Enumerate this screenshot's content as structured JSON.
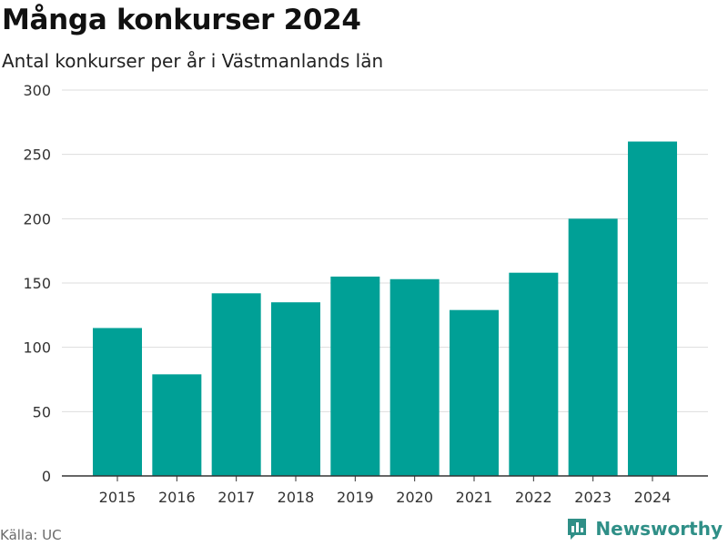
{
  "header": {
    "title": "Många konkurser 2024",
    "subtitle": "Antal konkurser per år i Västmanlands län"
  },
  "footer": {
    "source": "Källa: UC",
    "brand": "Newsworthy",
    "brand_icon": "bar-chart-logo-icon"
  },
  "colors": {
    "bar": "#00a096",
    "grid": "#dddddd",
    "axis": "#333333",
    "brand": "#2f8f87"
  },
  "chart_data": {
    "type": "bar",
    "categories": [
      "2015",
      "2016",
      "2017",
      "2018",
      "2019",
      "2020",
      "2021",
      "2022",
      "2023",
      "2024"
    ],
    "values": [
      115,
      79,
      142,
      135,
      155,
      153,
      129,
      158,
      200,
      260
    ],
    "title": "Många konkurser 2024",
    "subtitle": "Antal konkurser per år i Västmanlands län",
    "xlabel": "",
    "ylabel": "",
    "ylim": [
      0,
      300
    ],
    "yticks": [
      0,
      50,
      100,
      150,
      200,
      250,
      300
    ],
    "grid": true,
    "legend": "none"
  }
}
